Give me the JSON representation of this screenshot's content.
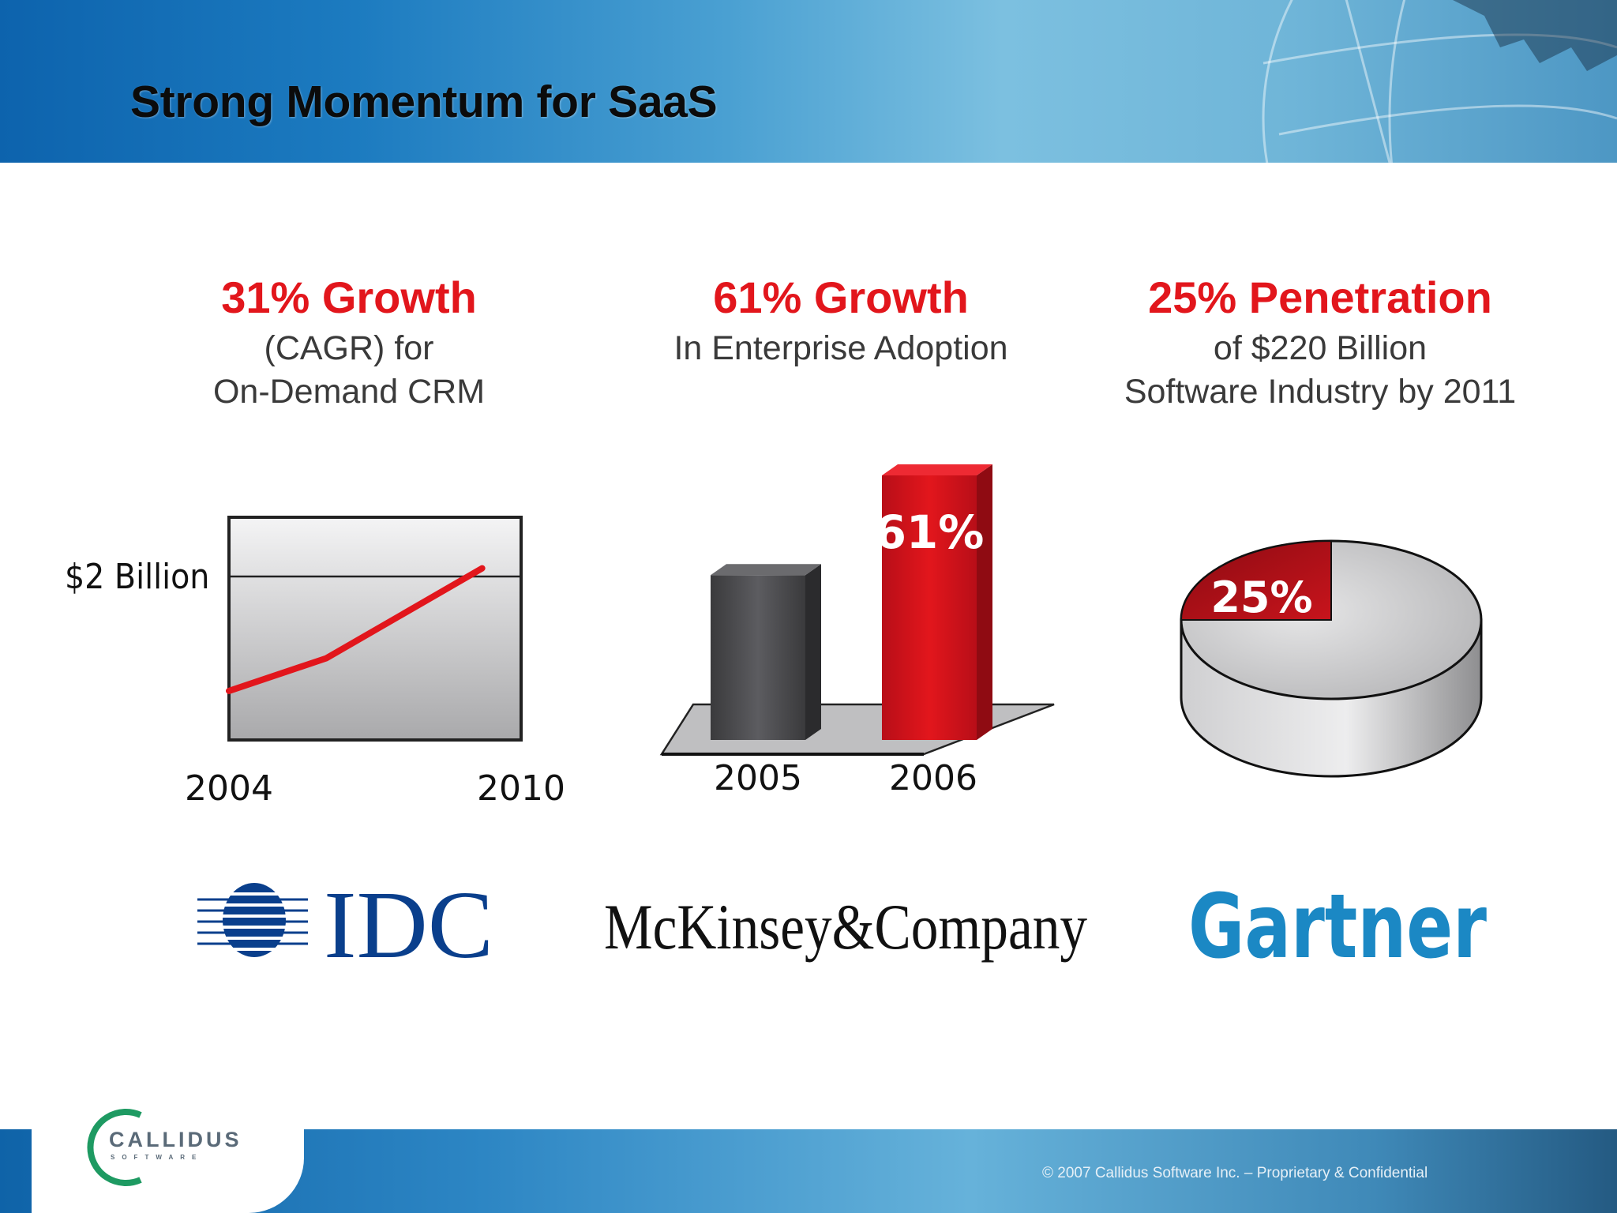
{
  "slide": {
    "title": "Strong Momentum for SaaS",
    "copyright": "© 2007 Callidus Software Inc. – Proprietary & Confidential"
  },
  "brand": {
    "name": "CALLIDUS",
    "tagline": "SOFTWARE",
    "accent_red": "#e2161c",
    "header_blue": "#1c7bc0"
  },
  "columns": [
    {
      "headline": "31% Growth",
      "line1": "(CAGR) for",
      "line2": "On-Demand CRM",
      "source": "IDC"
    },
    {
      "headline": "61% Growth",
      "line1": "In Enterprise Adoption",
      "line2": "",
      "source": "McKinsey&Company"
    },
    {
      "headline": "25% Penetration",
      "line1": "of $220 Billion",
      "line2": "Software Industry by 2011",
      "source": "Gartner"
    }
  ],
  "chart_data": [
    {
      "type": "line",
      "x": [
        2004,
        2010
      ],
      "xticks": [
        "2004",
        "2010"
      ],
      "ylabel_tick": "$2 Billion",
      "y_reference": 2,
      "series": [
        {
          "values": [
            {
              "x": 2004,
              "y": 0.6
            },
            {
              "x": 2006,
              "y": 1.0
            },
            {
              "x": 2009.2,
              "y": 2.1
            }
          ],
          "color": "#e2161c"
        }
      ]
    },
    {
      "type": "bar",
      "categories": [
        "2005",
        "2006"
      ],
      "values": [
        38,
        61
      ],
      "data_labels": [
        "",
        "61%"
      ],
      "colors": [
        "#555558",
        "#d7151e"
      ]
    },
    {
      "type": "pie",
      "slices": [
        {
          "label": "25%",
          "value": 25,
          "color": "#b80f1a"
        },
        {
          "label": "",
          "value": 75,
          "color": "#cfcfcf"
        }
      ]
    }
  ]
}
